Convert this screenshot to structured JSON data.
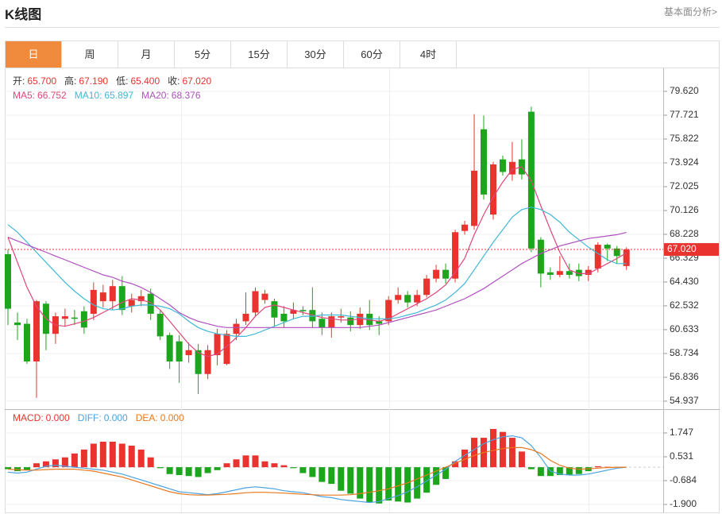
{
  "header": {
    "title": "K线图",
    "link": "基本面分析>"
  },
  "tabs": {
    "items": [
      "日",
      "周",
      "月",
      "5分",
      "15分",
      "30分",
      "60分",
      "4时"
    ],
    "active": 0
  },
  "chart_data": [
    {
      "type": "candlestick",
      "info": [
        {
          "label": "开:",
          "value": "65.700"
        },
        {
          "label": "高:",
          "value": "67.190"
        },
        {
          "label": "低:",
          "value": "65.400"
        },
        {
          "label": "收:",
          "value": "67.020"
        }
      ],
      "up_color": "#e8332e",
      "down_color": "#1da51d",
      "open": [
        66.65,
        61.2,
        61.1,
        58.1,
        62.7,
        60.3,
        61.5,
        61.6,
        62.1,
        61.9,
        62.9,
        62.9,
        64.1,
        62.5,
        62.9,
        63.5,
        61.9,
        60.2,
        59.7,
        58.6,
        59.0,
        57.1,
        58.6,
        57.9,
        60.3,
        61.3,
        62.0,
        63.0,
        62.9,
        61.9,
        61.9,
        62.2,
        62.2,
        61.5,
        60.8,
        61.6,
        61.6,
        61.0,
        61.9,
        61.3,
        61.3,
        63.0,
        63.4,
        62.8,
        63.4,
        64.7,
        65.4,
        64.7,
        68.5,
        68.9,
        76.6,
        69.8,
        74.2,
        73.0,
        74.2,
        78.0,
        67.8,
        65.2,
        65.0,
        65.3,
        65.4,
        65.0,
        65.5,
        67.4,
        67.1,
        65.7
      ],
      "high": [
        67.0,
        62.0,
        61.5,
        63.0,
        62.9,
        62.0,
        62.3,
        62.2,
        62.5,
        64.4,
        64.2,
        64.6,
        64.9,
        63.5,
        63.8,
        63.9,
        62.2,
        60.4,
        60.2,
        59.6,
        59.5,
        59.4,
        60.7,
        60.6,
        61.5,
        63.6,
        64.0,
        63.8,
        63.1,
        62.5,
        62.8,
        62.5,
        64.0,
        62.0,
        62.0,
        62.3,
        62.1,
        62.4,
        63.0,
        61.7,
        63.3,
        64.0,
        63.7,
        63.8,
        65.0,
        65.8,
        65.9,
        68.6,
        69.3,
        77.8,
        77.7,
        74.0,
        74.5,
        75.6,
        75.8,
        78.4,
        68.0,
        65.6,
        66.5,
        65.9,
        65.9,
        65.7,
        67.6,
        67.5,
        67.3,
        67.19
      ],
      "low": [
        61.0,
        59.8,
        57.9,
        55.2,
        59.0,
        59.5,
        60.9,
        61.0,
        60.3,
        61.4,
        62.4,
        62.2,
        61.8,
        62.0,
        62.5,
        61.4,
        59.8,
        57.5,
        56.4,
        58.0,
        55.5,
        56.7,
        57.8,
        57.8,
        59.8,
        61.0,
        61.7,
        62.7,
        60.9,
        60.8,
        61.5,
        61.8,
        60.8,
        60.2,
        60.0,
        61.2,
        60.5,
        60.7,
        60.6,
        60.2,
        61.0,
        62.7,
        62.4,
        62.5,
        63.2,
        64.4,
        64.3,
        64.4,
        68.2,
        68.6,
        71.0,
        69.4,
        72.9,
        72.5,
        72.6,
        66.8,
        64.0,
        64.6,
        64.8,
        64.7,
        64.5,
        64.5,
        65.2,
        66.1,
        65.9,
        65.4
      ],
      "close": [
        62.3,
        61.0,
        58.1,
        62.9,
        60.3,
        61.7,
        61.7,
        61.5,
        60.8,
        63.8,
        63.6,
        64.1,
        62.2,
        63.0,
        63.3,
        61.9,
        60.1,
        58.1,
        58.1,
        59.0,
        57.1,
        59.0,
        60.3,
        60.3,
        61.1,
        61.9,
        63.7,
        63.5,
        61.6,
        61.3,
        62.2,
        62.1,
        61.3,
        60.8,
        61.7,
        61.7,
        61.0,
        61.9,
        61.0,
        61.1,
        63.0,
        63.4,
        62.8,
        63.4,
        64.7,
        65.4,
        64.7,
        68.4,
        69.0,
        73.3,
        71.4,
        73.8,
        73.2,
        74.0,
        73.0,
        67.1,
        65.1,
        65.0,
        65.3,
        65.0,
        64.9,
        65.4,
        67.4,
        67.1,
        66.5,
        67.02
      ],
      "series": [
        {
          "name": "MA5:",
          "color": "#e0457b",
          "last_label": "66.752",
          "values": [
            68.0,
            66.0,
            64.0,
            62.5,
            61.5,
            61.0,
            60.9,
            61.1,
            61.3,
            61.6,
            62.0,
            62.4,
            62.8,
            63.1,
            63.0,
            62.8,
            62.2,
            61.3,
            60.4,
            59.5,
            58.8,
            58.5,
            58.7,
            59.3,
            60.0,
            60.8,
            61.7,
            62.4,
            62.6,
            62.4,
            62.2,
            62.0,
            61.8,
            61.6,
            61.5,
            61.4,
            61.4,
            61.5,
            61.4,
            61.3,
            61.5,
            61.9,
            62.3,
            62.7,
            63.1,
            63.6,
            64.2,
            65.2,
            66.3,
            68.2,
            69.8,
            71.2,
            72.4,
            73.4,
            73.6,
            72.5,
            70.5,
            68.6,
            66.8,
            65.4,
            65.1,
            65.1,
            65.5,
            65.9,
            66.3,
            66.752
          ]
        },
        {
          "name": "MA10:",
          "color": "#3fb8d6",
          "last_label": "65.897",
          "values": [
            69.0,
            68.4,
            67.6,
            66.8,
            66.0,
            65.2,
            64.4,
            63.7,
            63.1,
            62.6,
            62.3,
            62.2,
            62.3,
            62.5,
            62.6,
            62.6,
            62.5,
            62.3,
            61.9,
            61.3,
            60.8,
            60.5,
            60.3,
            60.2,
            60.1,
            60.1,
            60.3,
            60.6,
            60.9,
            61.2,
            61.5,
            61.7,
            61.7,
            61.8,
            61.8,
            61.8,
            61.7,
            61.6,
            61.5,
            61.5,
            61.5,
            61.6,
            61.8,
            62.0,
            62.3,
            62.6,
            63.0,
            63.6,
            64.3,
            65.4,
            66.5,
            67.6,
            68.6,
            69.6,
            70.2,
            70.4,
            70.2,
            69.8,
            69.2,
            68.4,
            67.8,
            67.2,
            66.7,
            66.2,
            65.9,
            65.897
          ]
        },
        {
          "name": "MA20:",
          "color": "#b04fc0",
          "last_label": "68.376",
          "values": [
            68.0,
            67.7,
            67.4,
            67.1,
            66.8,
            66.5,
            66.2,
            65.9,
            65.6,
            65.3,
            65.0,
            64.8,
            64.5,
            64.3,
            64.0,
            63.6,
            63.1,
            62.6,
            62.0,
            61.6,
            61.3,
            61.1,
            60.9,
            60.8,
            60.8,
            60.8,
            60.8,
            60.8,
            60.8,
            60.8,
            60.8,
            60.8,
            60.8,
            60.8,
            60.8,
            60.8,
            60.8,
            60.8,
            60.9,
            61.0,
            61.2,
            61.4,
            61.6,
            61.8,
            62.0,
            62.2,
            62.5,
            62.8,
            63.1,
            63.5,
            63.9,
            64.4,
            64.9,
            65.4,
            65.9,
            66.3,
            66.7,
            67.0,
            67.3,
            67.5,
            67.7,
            67.9,
            68.0,
            68.1,
            68.2,
            68.376
          ]
        }
      ],
      "last_price": {
        "value": 67.02,
        "label": "67.020"
      },
      "last_price_color": "#e8332e",
      "ylim": [
        54.3,
        81.33
      ],
      "yticks": [
        {
          "value": 79.62,
          "label": "79.620"
        },
        77.721,
        75.822,
        73.924,
        72.025,
        70.126,
        68.228,
        66.329,
        {
          "value": 64.43,
          "label": "64.430"
        },
        62.532,
        60.633,
        58.734,
        56.836,
        54.937
      ],
      "grid": true
    },
    {
      "type": "macd",
      "up_color": "#e8332e",
      "down_color": "#1da51d",
      "values": [
        -0.1,
        -0.2,
        -0.15,
        0.2,
        0.3,
        0.4,
        0.5,
        0.7,
        0.9,
        1.2,
        1.3,
        1.3,
        1.2,
        1.1,
        0.9,
        0.5,
        -0.05,
        -0.35,
        -0.4,
        -0.45,
        -0.5,
        -0.3,
        -0.15,
        0.2,
        0.4,
        0.6,
        0.6,
        0.3,
        0.2,
        0.1,
        -0.05,
        -0.3,
        -0.5,
        -0.75,
        -0.85,
        -1.2,
        -1.35,
        -1.6,
        -1.8,
        -1.85,
        -1.7,
        -1.75,
        -1.8,
        -1.6,
        -1.3,
        -0.9,
        -0.6,
        0.3,
        0.9,
        1.5,
        1.5,
        1.95,
        1.8,
        1.5,
        0.8,
        -0.1,
        -0.45,
        -0.45,
        -0.4,
        -0.4,
        -0.35,
        -0.2,
        0.05,
        0.02,
        0.01,
        0
      ],
      "name": "MACD:",
      "name_color": "#e8332e",
      "last_label": "0.000",
      "series": [
        {
          "name": "DIFF:",
          "color": "#4aa3e0",
          "last_label": "0.000",
          "values": [
            -0.25,
            -0.3,
            -0.25,
            -0.1,
            0.05,
            0.1,
            0.05,
            0.0,
            -0.05,
            -0.1,
            -0.15,
            -0.25,
            -0.35,
            -0.5,
            -0.65,
            -0.8,
            -0.95,
            -1.1,
            -1.25,
            -1.3,
            -1.35,
            -1.4,
            -1.35,
            -1.25,
            -1.15,
            -1.05,
            -1.0,
            -1.05,
            -1.1,
            -1.2,
            -1.25,
            -1.3,
            -1.4,
            -1.5,
            -1.55,
            -1.65,
            -1.7,
            -1.75,
            -1.8,
            -1.75,
            -1.6,
            -1.45,
            -1.25,
            -1.0,
            -0.7,
            -0.4,
            -0.1,
            0.3,
            0.6,
            0.9,
            1.2,
            1.4,
            1.55,
            1.6,
            1.5,
            1.1,
            0.5,
            -0.2,
            -0.35,
            -0.4,
            -0.4,
            -0.35,
            -0.25,
            -0.15,
            -0.05,
            0.0
          ]
        },
        {
          "name": "DEA:",
          "color": "#e8781e",
          "last_label": "0.000",
          "values": [
            -0.1,
            -0.12,
            -0.15,
            -0.15,
            -0.12,
            -0.1,
            -0.1,
            -0.1,
            -0.15,
            -0.2,
            -0.3,
            -0.4,
            -0.5,
            -0.65,
            -0.8,
            -0.95,
            -1.1,
            -1.25,
            -1.35,
            -1.4,
            -1.42,
            -1.42,
            -1.4,
            -1.38,
            -1.35,
            -1.3,
            -1.28,
            -1.28,
            -1.3,
            -1.32,
            -1.35,
            -1.38,
            -1.4,
            -1.42,
            -1.42,
            -1.42,
            -1.4,
            -1.35,
            -1.28,
            -1.2,
            -1.1,
            -0.95,
            -0.8,
            -0.6,
            -0.4,
            -0.2,
            0.0,
            0.2,
            0.4,
            0.6,
            0.75,
            0.85,
            0.95,
            1.0,
            1.0,
            0.9,
            0.7,
            0.35,
            0.1,
            -0.05,
            -0.1,
            -0.08,
            -0.05,
            -0.02,
            0.0,
            0.0
          ]
        }
      ],
      "ylim": [
        -2.305,
        2.88
      ],
      "yticks": [
        1.747,
        0.531,
        -0.684,
        {
          "value": -1.9,
          "label": "-1.900"
        }
      ],
      "grid": true
    }
  ]
}
